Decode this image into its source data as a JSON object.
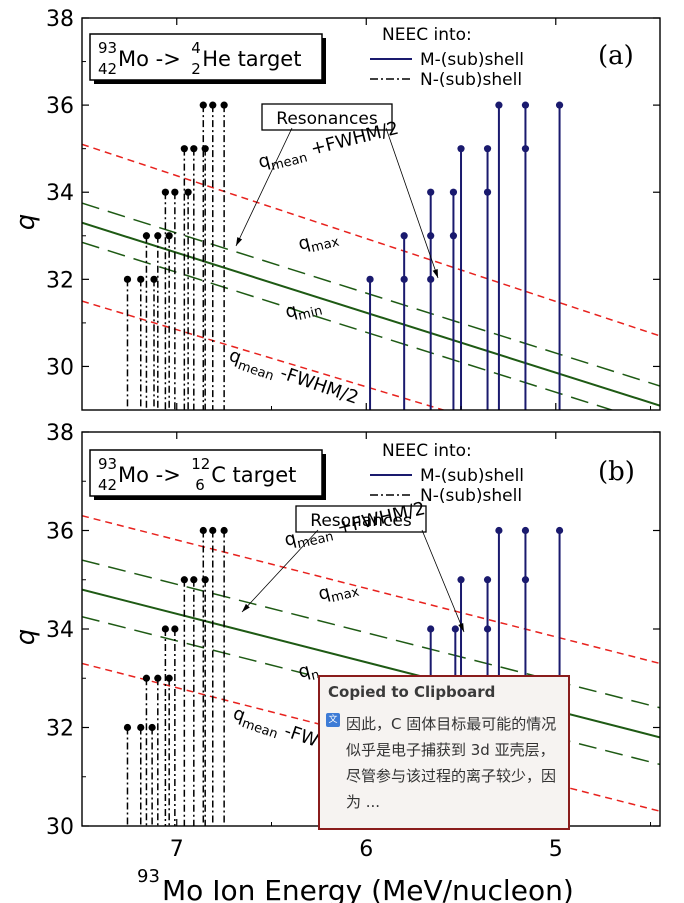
{
  "x_axis": {
    "label_sup": "93",
    "label_text": "Mo Ion Energy (MeV/nucleon)",
    "ticks": [
      "7",
      "6",
      "5"
    ],
    "tick_values": [
      7,
      6,
      5
    ],
    "range": [
      7.5,
      4.45
    ]
  },
  "chart_data": [
    {
      "type": "scatter",
      "panel_label": "(a)",
      "title_box": {
        "A": "93",
        "Z": "42",
        "el": "Mo",
        "arrow": " -> ",
        "tA": "4",
        "tZ": "2",
        "tel": "He",
        "suffix": " target"
      },
      "ylabel": "q",
      "ylim": [
        29,
        38
      ],
      "yticks": [
        "30",
        "32",
        "34",
        "36",
        "38"
      ],
      "ytick_values": [
        30,
        32,
        34,
        36,
        38
      ],
      "legend": {
        "title": "NEEC into:",
        "items": [
          "M-(sub)shell",
          "N-(sub)shell"
        ]
      },
      "resonances_label": "Resonances",
      "curve_labels": {
        "upper": {
          "main": "q",
          "sub": "mean",
          "rest": " +FWHM/2"
        },
        "max": {
          "main": "q",
          "sub": "max"
        },
        "min": {
          "main": "q",
          "sub": "min"
        },
        "lower": {
          "main": "q",
          "sub": "mean",
          "rest": " -FWHM/2"
        }
      },
      "curves": {
        "mean": {
          "x": [
            7.5,
            4.45
          ],
          "y": [
            33.3,
            29.1
          ],
          "color": "#1e5a14",
          "style": "solid"
        },
        "max": {
          "x": [
            7.5,
            4.45
          ],
          "y": [
            33.75,
            29.55
          ],
          "color": "#1e5a14",
          "style": "dashed"
        },
        "min": {
          "x": [
            7.5,
            4.45
          ],
          "y": [
            32.85,
            28.65
          ],
          "color": "#1e5a14",
          "style": "dashed"
        },
        "upper": {
          "x": [
            7.5,
            4.45
          ],
          "y": [
            35.1,
            30.7
          ],
          "color": "#e8221e",
          "style": "dashed"
        },
        "lower": {
          "x": [
            7.5,
            4.45
          ],
          "y": [
            31.5,
            27.5
          ],
          "color": "#e8221e",
          "style": "dashed"
        }
      },
      "N_resonances": [
        {
          "x": 7.26,
          "q": [
            32
          ]
        },
        {
          "x": 7.19,
          "q": [
            32
          ]
        },
        {
          "x": 7.16,
          "q": [
            33
          ]
        },
        {
          "x": 7.12,
          "q": [
            32
          ]
        },
        {
          "x": 7.1,
          "q": [
            33
          ]
        },
        {
          "x": 7.06,
          "q": [
            34
          ]
        },
        {
          "x": 7.04,
          "q": [
            33
          ]
        },
        {
          "x": 7.01,
          "q": [
            34
          ]
        },
        {
          "x": 6.96,
          "q": [
            35
          ]
        },
        {
          "x": 6.94,
          "q": [
            34
          ]
        },
        {
          "x": 6.91,
          "q": [
            35
          ]
        },
        {
          "x": 6.86,
          "q": [
            36
          ]
        },
        {
          "x": 6.85,
          "q": [
            35
          ]
        },
        {
          "x": 6.81,
          "q": [
            36
          ]
        },
        {
          "x": 6.75,
          "q": [
            36
          ]
        }
      ],
      "M_resonances": [
        {
          "x": 5.98,
          "q": [
            32
          ]
        },
        {
          "x": 5.8,
          "q": [
            32,
            33
          ]
        },
        {
          "x": 5.66,
          "q": [
            32,
            33,
            34
          ]
        },
        {
          "x": 5.54,
          "q": [
            33,
            34
          ]
        },
        {
          "x": 5.5,
          "q": [
            35
          ]
        },
        {
          "x": 5.36,
          "q": [
            34,
            35
          ]
        },
        {
          "x": 5.3,
          "q": [
            36
          ]
        },
        {
          "x": 5.16,
          "q": [
            35,
            36
          ]
        },
        {
          "x": 4.98,
          "q": [
            36
          ]
        }
      ]
    },
    {
      "type": "scatter",
      "panel_label": "(b)",
      "title_box": {
        "A": "93",
        "Z": "42",
        "el": "Mo",
        "arrow": " -> ",
        "tA": "12",
        "tZ": "6",
        "tel": "C",
        "suffix": " target"
      },
      "ylabel": "q",
      "ylim": [
        30,
        38
      ],
      "yticks": [
        "30",
        "32",
        "34",
        "36",
        "38"
      ],
      "ytick_values": [
        30,
        32,
        34,
        36,
        38
      ],
      "legend": {
        "title": "NEEC into:",
        "items": [
          "M-(sub)shell",
          "N-(sub)shell"
        ]
      },
      "resonances_label": "Resonances",
      "curve_labels": {
        "upper": {
          "main": "q",
          "sub": "mean",
          "rest": " +FWHM/2"
        },
        "max": {
          "main": "q",
          "sub": "max"
        },
        "min": {
          "main": "q",
          "sub": "n"
        },
        "lower": {
          "main": "q",
          "sub": "mean",
          "rest": " -FW"
        }
      },
      "curves": {
        "mean": {
          "x": [
            7.5,
            4.45
          ],
          "y": [
            34.8,
            31.8
          ],
          "color": "#1e5a14",
          "style": "solid"
        },
        "max": {
          "x": [
            7.5,
            4.45
          ],
          "y": [
            35.4,
            32.4
          ],
          "color": "#1e5a14",
          "style": "dashed"
        },
        "min": {
          "x": [
            7.5,
            4.45
          ],
          "y": [
            34.25,
            31.25
          ],
          "color": "#1e5a14",
          "style": "dashed"
        },
        "upper": {
          "x": [
            7.5,
            4.45
          ],
          "y": [
            36.3,
            33.3
          ],
          "color": "#e8221e",
          "style": "dashed"
        },
        "lower": {
          "x": [
            7.5,
            4.45
          ],
          "y": [
            33.3,
            30.3
          ],
          "color": "#e8221e",
          "style": "dashed"
        }
      },
      "N_resonances": [
        {
          "x": 7.26,
          "q": [
            32
          ]
        },
        {
          "x": 7.19,
          "q": [
            32
          ]
        },
        {
          "x": 7.16,
          "q": [
            33
          ]
        },
        {
          "x": 7.13,
          "q": [
            32
          ]
        },
        {
          "x": 7.1,
          "q": [
            33
          ]
        },
        {
          "x": 7.06,
          "q": [
            34
          ]
        },
        {
          "x": 7.04,
          "q": [
            33
          ]
        },
        {
          "x": 7.01,
          "q": [
            34
          ]
        },
        {
          "x": 6.96,
          "q": [
            35
          ]
        },
        {
          "x": 6.91,
          "q": [
            35
          ]
        },
        {
          "x": 6.86,
          "q": [
            36
          ]
        },
        {
          "x": 6.85,
          "q": [
            35
          ]
        },
        {
          "x": 6.81,
          "q": [
            36
          ]
        },
        {
          "x": 6.75,
          "q": [
            36
          ]
        }
      ],
      "M_resonances": [
        {
          "x": 5.66,
          "q": [
            34
          ]
        },
        {
          "x": 5.53,
          "q": [
            34
          ]
        },
        {
          "x": 5.5,
          "q": [
            35
          ]
        },
        {
          "x": 5.36,
          "q": [
            34,
            35
          ]
        },
        {
          "x": 5.3,
          "q": [
            36
          ]
        },
        {
          "x": 5.16,
          "q": [
            35,
            36
          ]
        },
        {
          "x": 4.98,
          "q": [
            36
          ]
        }
      ]
    }
  ],
  "notification": {
    "title": "Copied to Clipboard",
    "icon": "translate-icon",
    "text": "因此，C 固体目标最可能的情况似乎是电子捕获到 3d 亚壳层，尽管参与该过程的离子较少，因为 ..."
  },
  "colors": {
    "n_shell": "#000000",
    "m_shell": "#1a1a6e",
    "notification_border": "#8a1c1c"
  }
}
